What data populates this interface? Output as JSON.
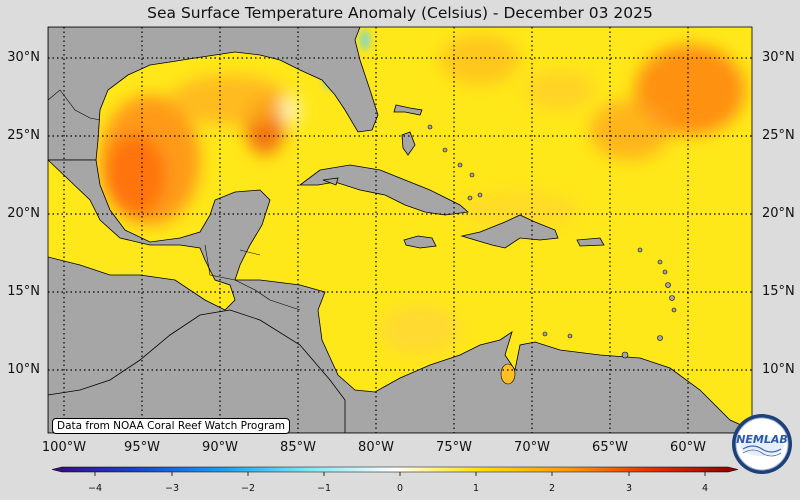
{
  "title": "Sea Surface Temperature Anomaly (Celsius) - December 03 2025",
  "latitudes": [
    "30°N",
    "25°N",
    "20°N",
    "15°N",
    "10°N"
  ],
  "longitudes": [
    "100°W",
    "95°W",
    "90°W",
    "85°W",
    "80°W",
    "75°W",
    "70°W",
    "65°W",
    "60°W"
  ],
  "credit": "Data from NOAA Coral Reef Watch Program",
  "colorbar": {
    "min": -4,
    "max": 4,
    "ticks": [
      "−4",
      "−3",
      "−2",
      "−1",
      "0",
      "1",
      "2",
      "3",
      "4"
    ]
  },
  "logo": {
    "text": "NEMLAB"
  },
  "colors": {
    "land": "#a6a6a6",
    "ocean_base": "#ffe81a",
    "background": "#dcdcdc"
  }
}
